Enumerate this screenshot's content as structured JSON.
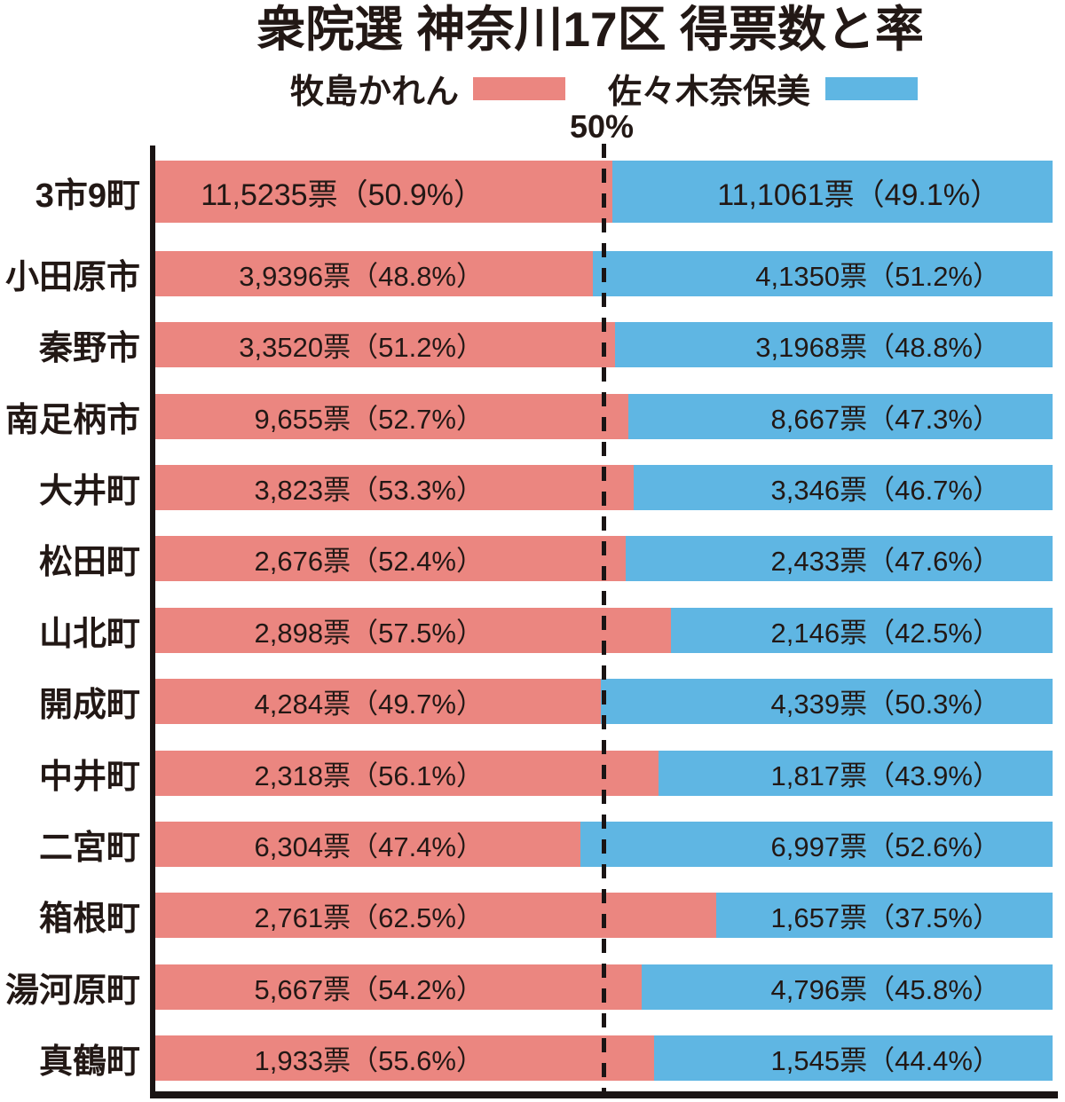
{
  "title": "衆院選 神奈川17区 得票数と率",
  "legend": [
    {
      "name": "牧島かれん",
      "color": "#eb8680"
    },
    {
      "name": "佐々木奈保美",
      "color": "#5fb6e3"
    }
  ],
  "axis": {
    "fifty_label": "50%"
  },
  "chart_data": {
    "type": "bar",
    "subtype": "horizontal-100pct-stacked",
    "title": "衆院選 神奈川17区 得票数と率",
    "series": [
      "牧島かれん",
      "佐々木奈保美"
    ],
    "series_colors": [
      "#eb8680",
      "#5fb6e3"
    ],
    "unit": "票",
    "gridline": {
      "value": 50,
      "label": "50%",
      "style": "dashed"
    },
    "xlim": [
      0,
      100
    ],
    "rows": [
      {
        "area": "3市9町",
        "makishima": {
          "votes": "11,5235",
          "pct": 50.9,
          "label": "11,5235票（50.9%）"
        },
        "sasaki": {
          "votes": "11,1061",
          "pct": 49.1,
          "label": "11,1061票（49.1%）"
        }
      },
      {
        "area": "小田原市",
        "makishima": {
          "votes": "3,9396",
          "pct": 48.8,
          "label": "3,9396票（48.8%）"
        },
        "sasaki": {
          "votes": "4,1350",
          "pct": 51.2,
          "label": "4,1350票（51.2%）"
        }
      },
      {
        "area": "秦野市",
        "makishima": {
          "votes": "3,3520",
          "pct": 51.2,
          "label": "3,3520票（51.2%）"
        },
        "sasaki": {
          "votes": "3,1968",
          "pct": 48.8,
          "label": "3,1968票（48.8%）"
        }
      },
      {
        "area": "南足柄市",
        "makishima": {
          "votes": "9,655",
          "pct": 52.7,
          "label": "9,655票（52.7%）"
        },
        "sasaki": {
          "votes": "8,667",
          "pct": 47.3,
          "label": "8,667票（47.3%）"
        }
      },
      {
        "area": "大井町",
        "makishima": {
          "votes": "3,823",
          "pct": 53.3,
          "label": "3,823票（53.3%）"
        },
        "sasaki": {
          "votes": "3,346",
          "pct": 46.7,
          "label": "3,346票（46.7%）"
        }
      },
      {
        "area": "松田町",
        "makishima": {
          "votes": "2,676",
          "pct": 52.4,
          "label": "2,676票（52.4%）"
        },
        "sasaki": {
          "votes": "2,433",
          "pct": 47.6,
          "label": "2,433票（47.6%）"
        }
      },
      {
        "area": "山北町",
        "makishima": {
          "votes": "2,898",
          "pct": 57.5,
          "label": "2,898票（57.5%）"
        },
        "sasaki": {
          "votes": "2,146",
          "pct": 42.5,
          "label": "2,146票（42.5%）"
        }
      },
      {
        "area": "開成町",
        "makishima": {
          "votes": "4,284",
          "pct": 49.7,
          "label": "4,284票（49.7%）"
        },
        "sasaki": {
          "votes": "4,339",
          "pct": 50.3,
          "label": "4,339票（50.3%）"
        }
      },
      {
        "area": "中井町",
        "makishima": {
          "votes": "2,318",
          "pct": 56.1,
          "label": "2,318票（56.1%）"
        },
        "sasaki": {
          "votes": "1,817",
          "pct": 43.9,
          "label": "1,817票（43.9%）"
        }
      },
      {
        "area": "二宮町",
        "makishima": {
          "votes": "6,304",
          "pct": 47.4,
          "label": "6,304票（47.4%）"
        },
        "sasaki": {
          "votes": "6,997",
          "pct": 52.6,
          "label": "6,997票（52.6%）"
        }
      },
      {
        "area": "箱根町",
        "makishima": {
          "votes": "2,761",
          "pct": 62.5,
          "label": "2,761票（62.5%）"
        },
        "sasaki": {
          "votes": "1,657",
          "pct": 37.5,
          "label": "1,657票（37.5%）"
        }
      },
      {
        "area": "湯河原町",
        "makishima": {
          "votes": "5,667",
          "pct": 54.2,
          "label": "5,667票（54.2%）"
        },
        "sasaki": {
          "votes": "4,796",
          "pct": 45.8,
          "label": "4,796票（45.8%）"
        }
      },
      {
        "area": "真鶴町",
        "makishima": {
          "votes": "1,933",
          "pct": 55.6,
          "label": "1,933票（55.6%）"
        },
        "sasaki": {
          "votes": "1,545",
          "pct": 44.4,
          "label": "1,545票（44.4%）"
        }
      }
    ]
  }
}
